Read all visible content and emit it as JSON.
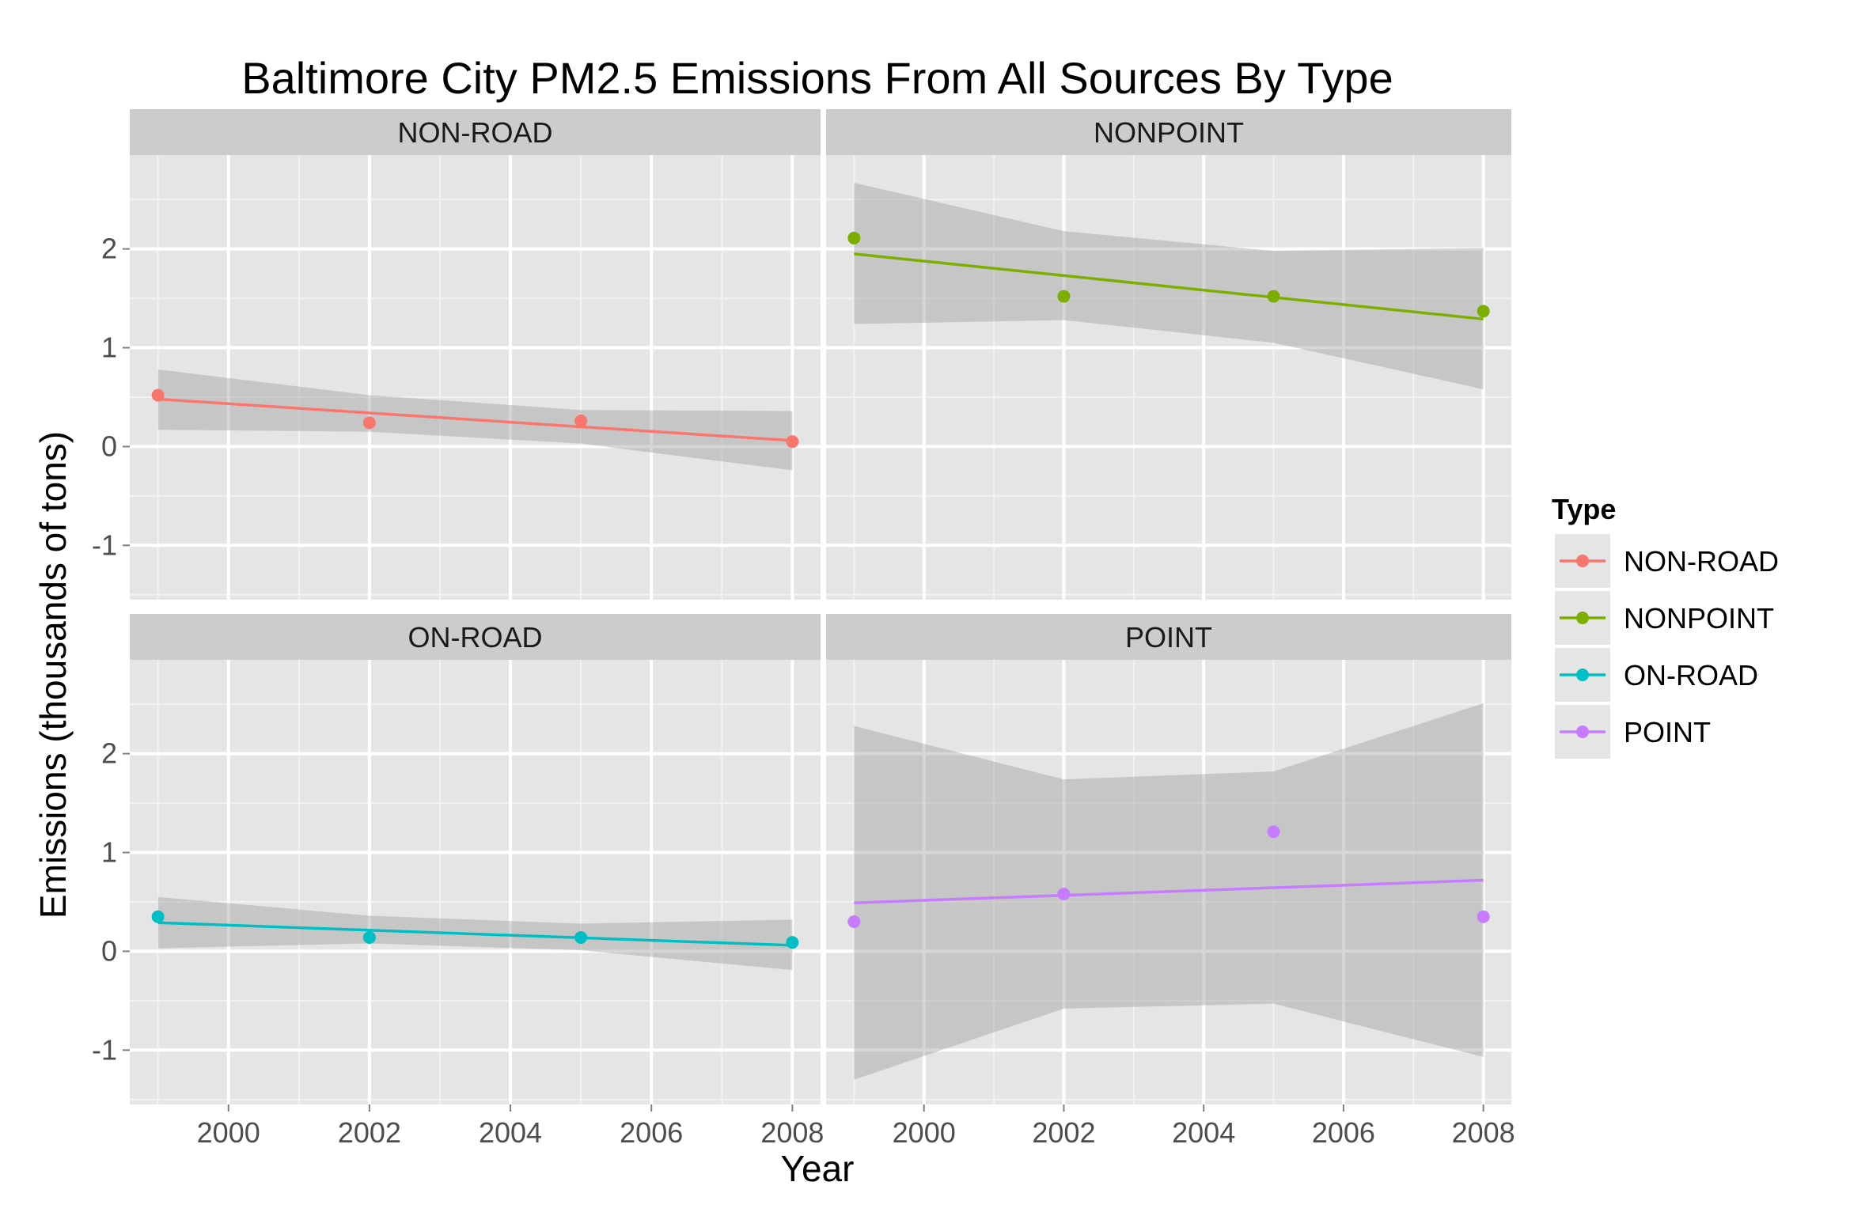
{
  "chart_data": {
    "type": "scatter",
    "title": "Baltimore City PM2.5 Emissions From All Sources By Type",
    "xlabel": "Year",
    "ylabel": "Emissions (thousands of tons)",
    "xlim": [
      1998.6,
      2008.4
    ],
    "ylim": [
      -1.55,
      2.95
    ],
    "x_ticks": [
      2000,
      2002,
      2004,
      2006,
      2008
    ],
    "y_ticks": [
      -1,
      0,
      1,
      2
    ],
    "grid": true,
    "facet_layout": "2x2",
    "legend": {
      "title": "Type",
      "position": "right",
      "entries": [
        "NON-ROAD",
        "NONPOINT",
        "ON-ROAD",
        "POINT"
      ]
    },
    "panels": [
      {
        "name": "NON-ROAD",
        "color": "#F8766D",
        "points": {
          "x": [
            1999,
            2002,
            2005,
            2008
          ],
          "y": [
            0.52,
            0.24,
            0.26,
            0.05
          ]
        },
        "fit": {
          "x": [
            1999,
            2008
          ],
          "y": [
            0.48,
            0.06
          ]
        },
        "band": {
          "x": [
            1999,
            2002,
            2005,
            2008
          ],
          "lower": [
            0.17,
            0.15,
            0.03,
            -0.24
          ],
          "upper": [
            0.78,
            0.52,
            0.37,
            0.36
          ]
        }
      },
      {
        "name": "NONPOINT",
        "color": "#7CAE00",
        "points": {
          "x": [
            1999,
            2002,
            2005,
            2008
          ],
          "y": [
            2.11,
            1.52,
            1.52,
            1.37
          ]
        },
        "fit": {
          "x": [
            1999,
            2008
          ],
          "y": [
            1.95,
            1.29
          ]
        },
        "band": {
          "x": [
            1999,
            2002,
            2005,
            2008
          ],
          "lower": [
            1.24,
            1.28,
            1.05,
            0.58
          ],
          "upper": [
            2.67,
            2.18,
            1.98,
            2.01
          ]
        }
      },
      {
        "name": "ON-ROAD",
        "color": "#00BFC4",
        "points": {
          "x": [
            1999,
            2002,
            2005,
            2008
          ],
          "y": [
            0.35,
            0.14,
            0.14,
            0.09
          ]
        },
        "fit": {
          "x": [
            1999,
            2008
          ],
          "y": [
            0.29,
            0.06
          ]
        },
        "band": {
          "x": [
            1999,
            2002,
            2005,
            2008
          ],
          "lower": [
            0.03,
            0.08,
            0.01,
            -0.19
          ],
          "upper": [
            0.55,
            0.36,
            0.28,
            0.32
          ]
        }
      },
      {
        "name": "POINT",
        "color": "#C77CFF",
        "points": {
          "x": [
            1999,
            2002,
            2005,
            2008
          ],
          "y": [
            0.3,
            0.58,
            1.21,
            0.35
          ]
        },
        "fit": {
          "x": [
            1999,
            2008
          ],
          "y": [
            0.49,
            0.72
          ]
        },
        "band": {
          "x": [
            1999,
            2002,
            2005,
            2008
          ],
          "lower": [
            -1.3,
            -0.58,
            -0.53,
            -1.07
          ],
          "upper": [
            2.28,
            1.74,
            1.82,
            2.51
          ]
        }
      }
    ]
  }
}
